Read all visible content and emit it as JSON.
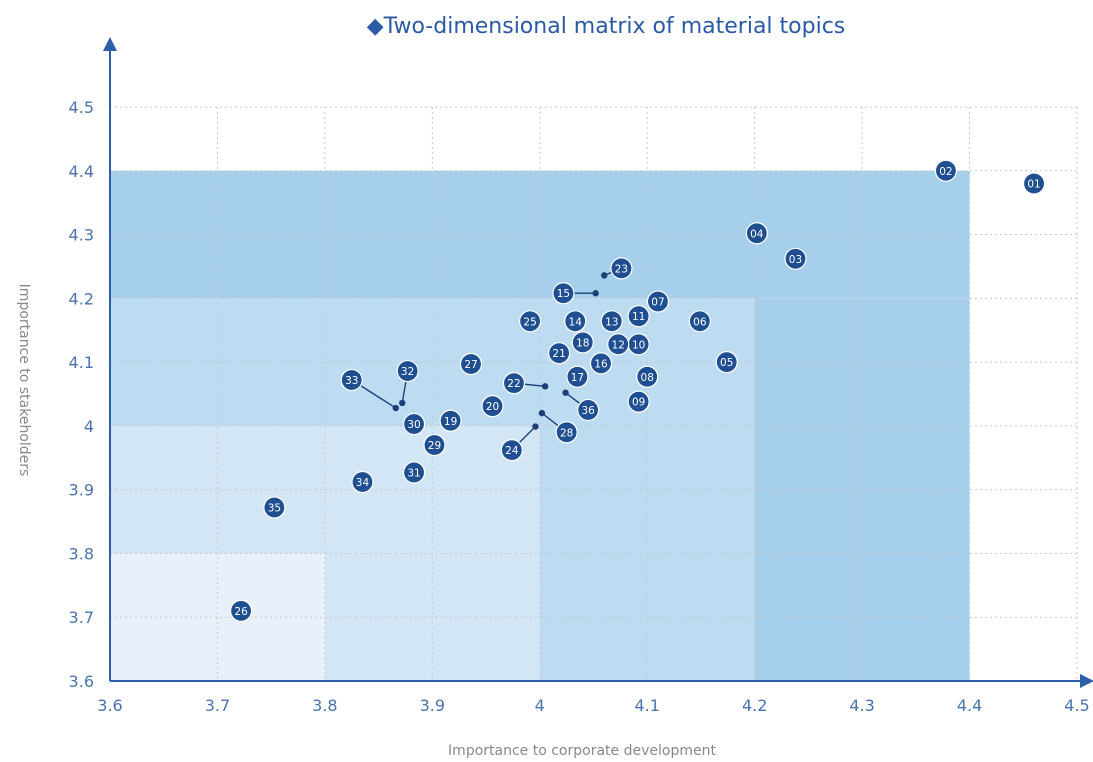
{
  "chart_data": {
    "type": "scatter",
    "title": "◆Two-dimensional matrix of material topics",
    "xlabel": "Importance to corporate development",
    "ylabel": "Importance to stakeholders",
    "xlim": [
      3.6,
      4.5
    ],
    "ylim": [
      3.6,
      4.5
    ],
    "x_ticks": [
      "3.6",
      "3.7",
      "3.8",
      "3.9",
      "4",
      "4.1",
      "4.2",
      "4.3",
      "4.4",
      "4.5"
    ],
    "y_ticks": [
      "3.6",
      "3.7",
      "3.8",
      "3.9",
      "4",
      "4.1",
      "4.2",
      "4.3",
      "4.4",
      "4.5"
    ],
    "grid": true,
    "marker_color": "#1f4f91",
    "zone_colors": [
      "#e8f1fa",
      "#d3e6f6",
      "#bddbf1",
      "#a6cfec"
    ],
    "zones": [
      {
        "x": [
          3.6,
          4.4
        ],
        "y": [
          4.2,
          4.4
        ],
        "level": 3
      },
      {
        "x": [
          4.2,
          4.4
        ],
        "y": [
          3.6,
          4.2
        ],
        "level": 3
      },
      {
        "x": [
          3.6,
          4.2
        ],
        "y": [
          4.0,
          4.2
        ],
        "level": 2
      },
      {
        "x": [
          4.0,
          4.2
        ],
        "y": [
          3.6,
          4.0
        ],
        "level": 2
      },
      {
        "x": [
          3.6,
          4.0
        ],
        "y": [
          3.8,
          4.0
        ],
        "level": 1
      },
      {
        "x": [
          3.8,
          4.0
        ],
        "y": [
          3.6,
          3.8
        ],
        "level": 1
      },
      {
        "x": [
          3.6,
          3.8
        ],
        "y": [
          3.6,
          3.8
        ],
        "level": 0
      }
    ],
    "points": [
      {
        "label": "01",
        "x": 4.46,
        "y": 4.38
      },
      {
        "label": "02",
        "x": 4.378,
        "y": 4.4
      },
      {
        "label": "03",
        "x": 4.238,
        "y": 4.262
      },
      {
        "label": "04",
        "x": 4.202,
        "y": 4.302
      },
      {
        "label": "05",
        "x": 4.174,
        "y": 4.1
      },
      {
        "label": "06",
        "x": 4.149,
        "y": 4.164
      },
      {
        "label": "07",
        "x": 4.11,
        "y": 4.195
      },
      {
        "label": "08",
        "x": 4.1,
        "y": 4.077
      },
      {
        "label": "09",
        "x": 4.092,
        "y": 4.038
      },
      {
        "label": "10",
        "x": 4.092,
        "y": 4.128
      },
      {
        "label": "11",
        "x": 4.092,
        "y": 4.172
      },
      {
        "label": "12",
        "x": 4.073,
        "y": 4.128
      },
      {
        "label": "13",
        "x": 4.067,
        "y": 4.164
      },
      {
        "label": "14",
        "x": 4.033,
        "y": 4.164
      },
      {
        "label": "15",
        "x": 4.022,
        "y": 4.208,
        "anchor": [
          4.052,
          4.208
        ]
      },
      {
        "label": "16",
        "x": 4.057,
        "y": 4.098
      },
      {
        "label": "17",
        "x": 4.035,
        "y": 4.077
      },
      {
        "label": "18",
        "x": 4.04,
        "y": 4.131
      },
      {
        "label": "19",
        "x": 3.917,
        "y": 4.008
      },
      {
        "label": "20",
        "x": 3.956,
        "y": 4.031
      },
      {
        "label": "21",
        "x": 4.018,
        "y": 4.114
      },
      {
        "label": "22",
        "x": 3.976,
        "y": 4.067,
        "anchor": [
          4.005,
          4.062
        ]
      },
      {
        "label": "23",
        "x": 4.076,
        "y": 4.247,
        "anchor": [
          4.06,
          4.236
        ]
      },
      {
        "label": "24",
        "x": 3.974,
        "y": 3.962,
        "anchor": [
          3.996,
          3.999
        ]
      },
      {
        "label": "25",
        "x": 3.991,
        "y": 4.164
      },
      {
        "label": "26",
        "x": 3.722,
        "y": 3.71
      },
      {
        "label": "27",
        "x": 3.936,
        "y": 4.097
      },
      {
        "label": "28",
        "x": 4.025,
        "y": 3.99,
        "anchor": [
          4.002,
          4.02
        ]
      },
      {
        "label": "29",
        "x": 3.902,
        "y": 3.97
      },
      {
        "label": "30",
        "x": 3.883,
        "y": 4.003
      },
      {
        "label": "31",
        "x": 3.883,
        "y": 3.927
      },
      {
        "label": "32",
        "x": 3.877,
        "y": 4.086,
        "anchor": [
          3.872,
          4.036
        ]
      },
      {
        "label": "33",
        "x": 3.825,
        "y": 4.072,
        "anchor": [
          3.866,
          4.028
        ]
      },
      {
        "label": "34",
        "x": 3.835,
        "y": 3.912
      },
      {
        "label": "35",
        "x": 3.753,
        "y": 3.872
      },
      {
        "label": "36",
        "x": 4.045,
        "y": 4.025,
        "anchor": [
          4.024,
          4.052
        ]
      }
    ]
  }
}
